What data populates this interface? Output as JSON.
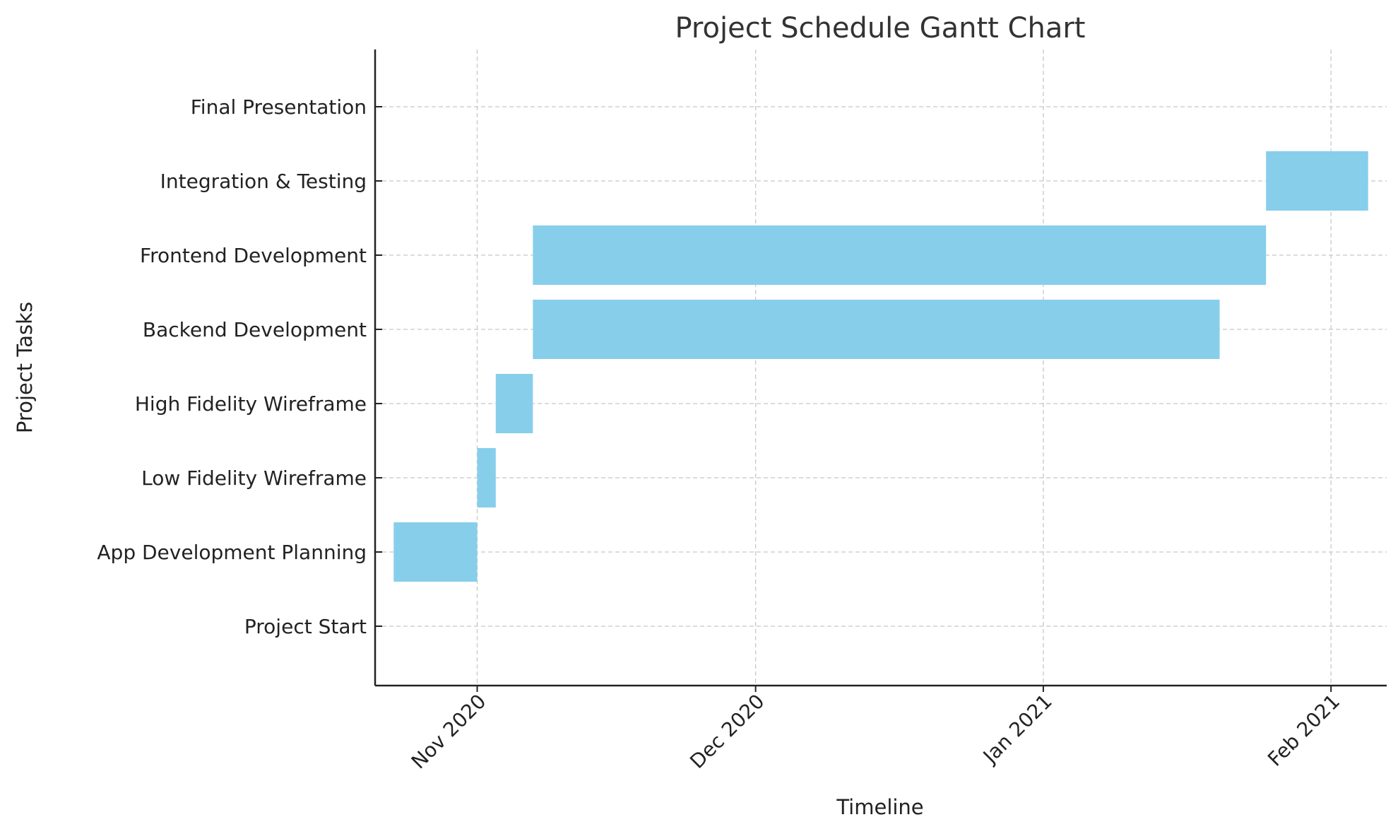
{
  "chart_data": {
    "type": "bar",
    "orientation": "horizontal",
    "subtype": "gantt",
    "title": "Project Schedule Gantt Chart",
    "xlabel": "Timeline",
    "ylabel": "Project Tasks",
    "xlim": [
      "2020-10-21",
      "2021-02-07"
    ],
    "x_ticks": [
      {
        "date": "2020-11-01",
        "label": "Nov 2020"
      },
      {
        "date": "2020-12-01",
        "label": "Dec 2020"
      },
      {
        "date": "2021-01-01",
        "label": "Jan 2021"
      },
      {
        "date": "2021-02-01",
        "label": "Feb 2021"
      }
    ],
    "grid": true,
    "bar_color": "#87ceeb",
    "tasks": [
      {
        "name": "Project Start",
        "start": "2020-10-23",
        "end": "2020-10-23"
      },
      {
        "name": "App Development Planning",
        "start": "2020-10-23",
        "end": "2020-11-01"
      },
      {
        "name": "Low Fidelity Wireframe",
        "start": "2020-11-01",
        "end": "2020-11-03"
      },
      {
        "name": "High Fidelity Wireframe",
        "start": "2020-11-03",
        "end": "2020-11-07"
      },
      {
        "name": "Backend Development",
        "start": "2020-11-07",
        "end": "2021-01-20"
      },
      {
        "name": "Frontend Development",
        "start": "2020-11-07",
        "end": "2021-01-25"
      },
      {
        "name": "Integration & Testing",
        "start": "2021-01-25",
        "end": "2021-02-05"
      },
      {
        "name": "Final Presentation",
        "start": "2021-02-05",
        "end": "2021-02-05"
      }
    ]
  }
}
